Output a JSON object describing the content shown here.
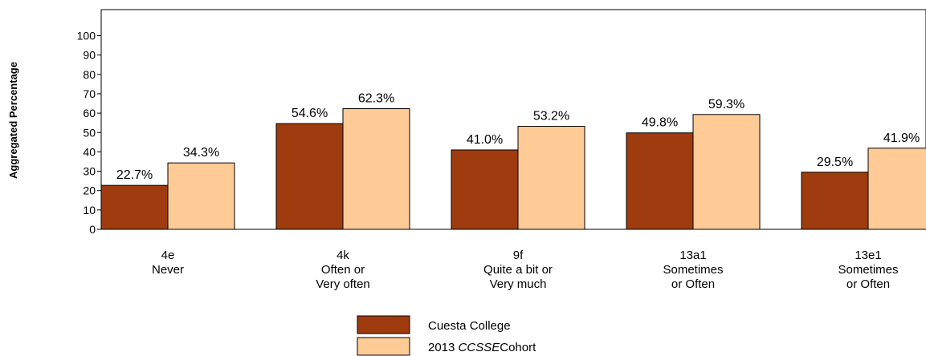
{
  "chart_data": {
    "type": "bar",
    "ylabel": "Aggregated Percentage",
    "xlabel": "",
    "title": "",
    "ylim": [
      0,
      100
    ],
    "yticks": [
      0,
      10,
      20,
      30,
      40,
      50,
      60,
      70,
      80,
      90,
      100
    ],
    "grid": false,
    "legend_position": "bottom-center",
    "categories": [
      [
        "4e",
        "Never"
      ],
      [
        "4k",
        "Often or",
        "Very often"
      ],
      [
        "9f",
        "Quite a bit or",
        "Very much"
      ],
      [
        "13a1",
        "Sometimes",
        "or Often"
      ],
      [
        "13e1",
        "Sometimes",
        "or Often"
      ]
    ],
    "series": [
      {
        "name": "Cuesta College",
        "name_parts": [
          {
            "text": "Cuesta College",
            "italic": false
          }
        ],
        "color": "#9E3B0F",
        "values": [
          22.7,
          54.6,
          41.0,
          49.8,
          29.5
        ],
        "labels": [
          "22.7%",
          "54.6%",
          "41.0%",
          "49.8%",
          "29.5%"
        ]
      },
      {
        "name": "2013 CCSSE Cohort",
        "name_parts": [
          {
            "text": "2013 ",
            "italic": false
          },
          {
            "text": "CCSSE",
            "italic": true
          },
          {
            "text": "Cohort",
            "italic": false
          }
        ],
        "color": "#FECA96",
        "values": [
          34.3,
          62.3,
          53.2,
          59.3,
          41.9
        ],
        "labels": [
          "34.3%",
          "62.3%",
          "53.2%",
          "59.3%",
          "41.9%"
        ]
      }
    ]
  }
}
